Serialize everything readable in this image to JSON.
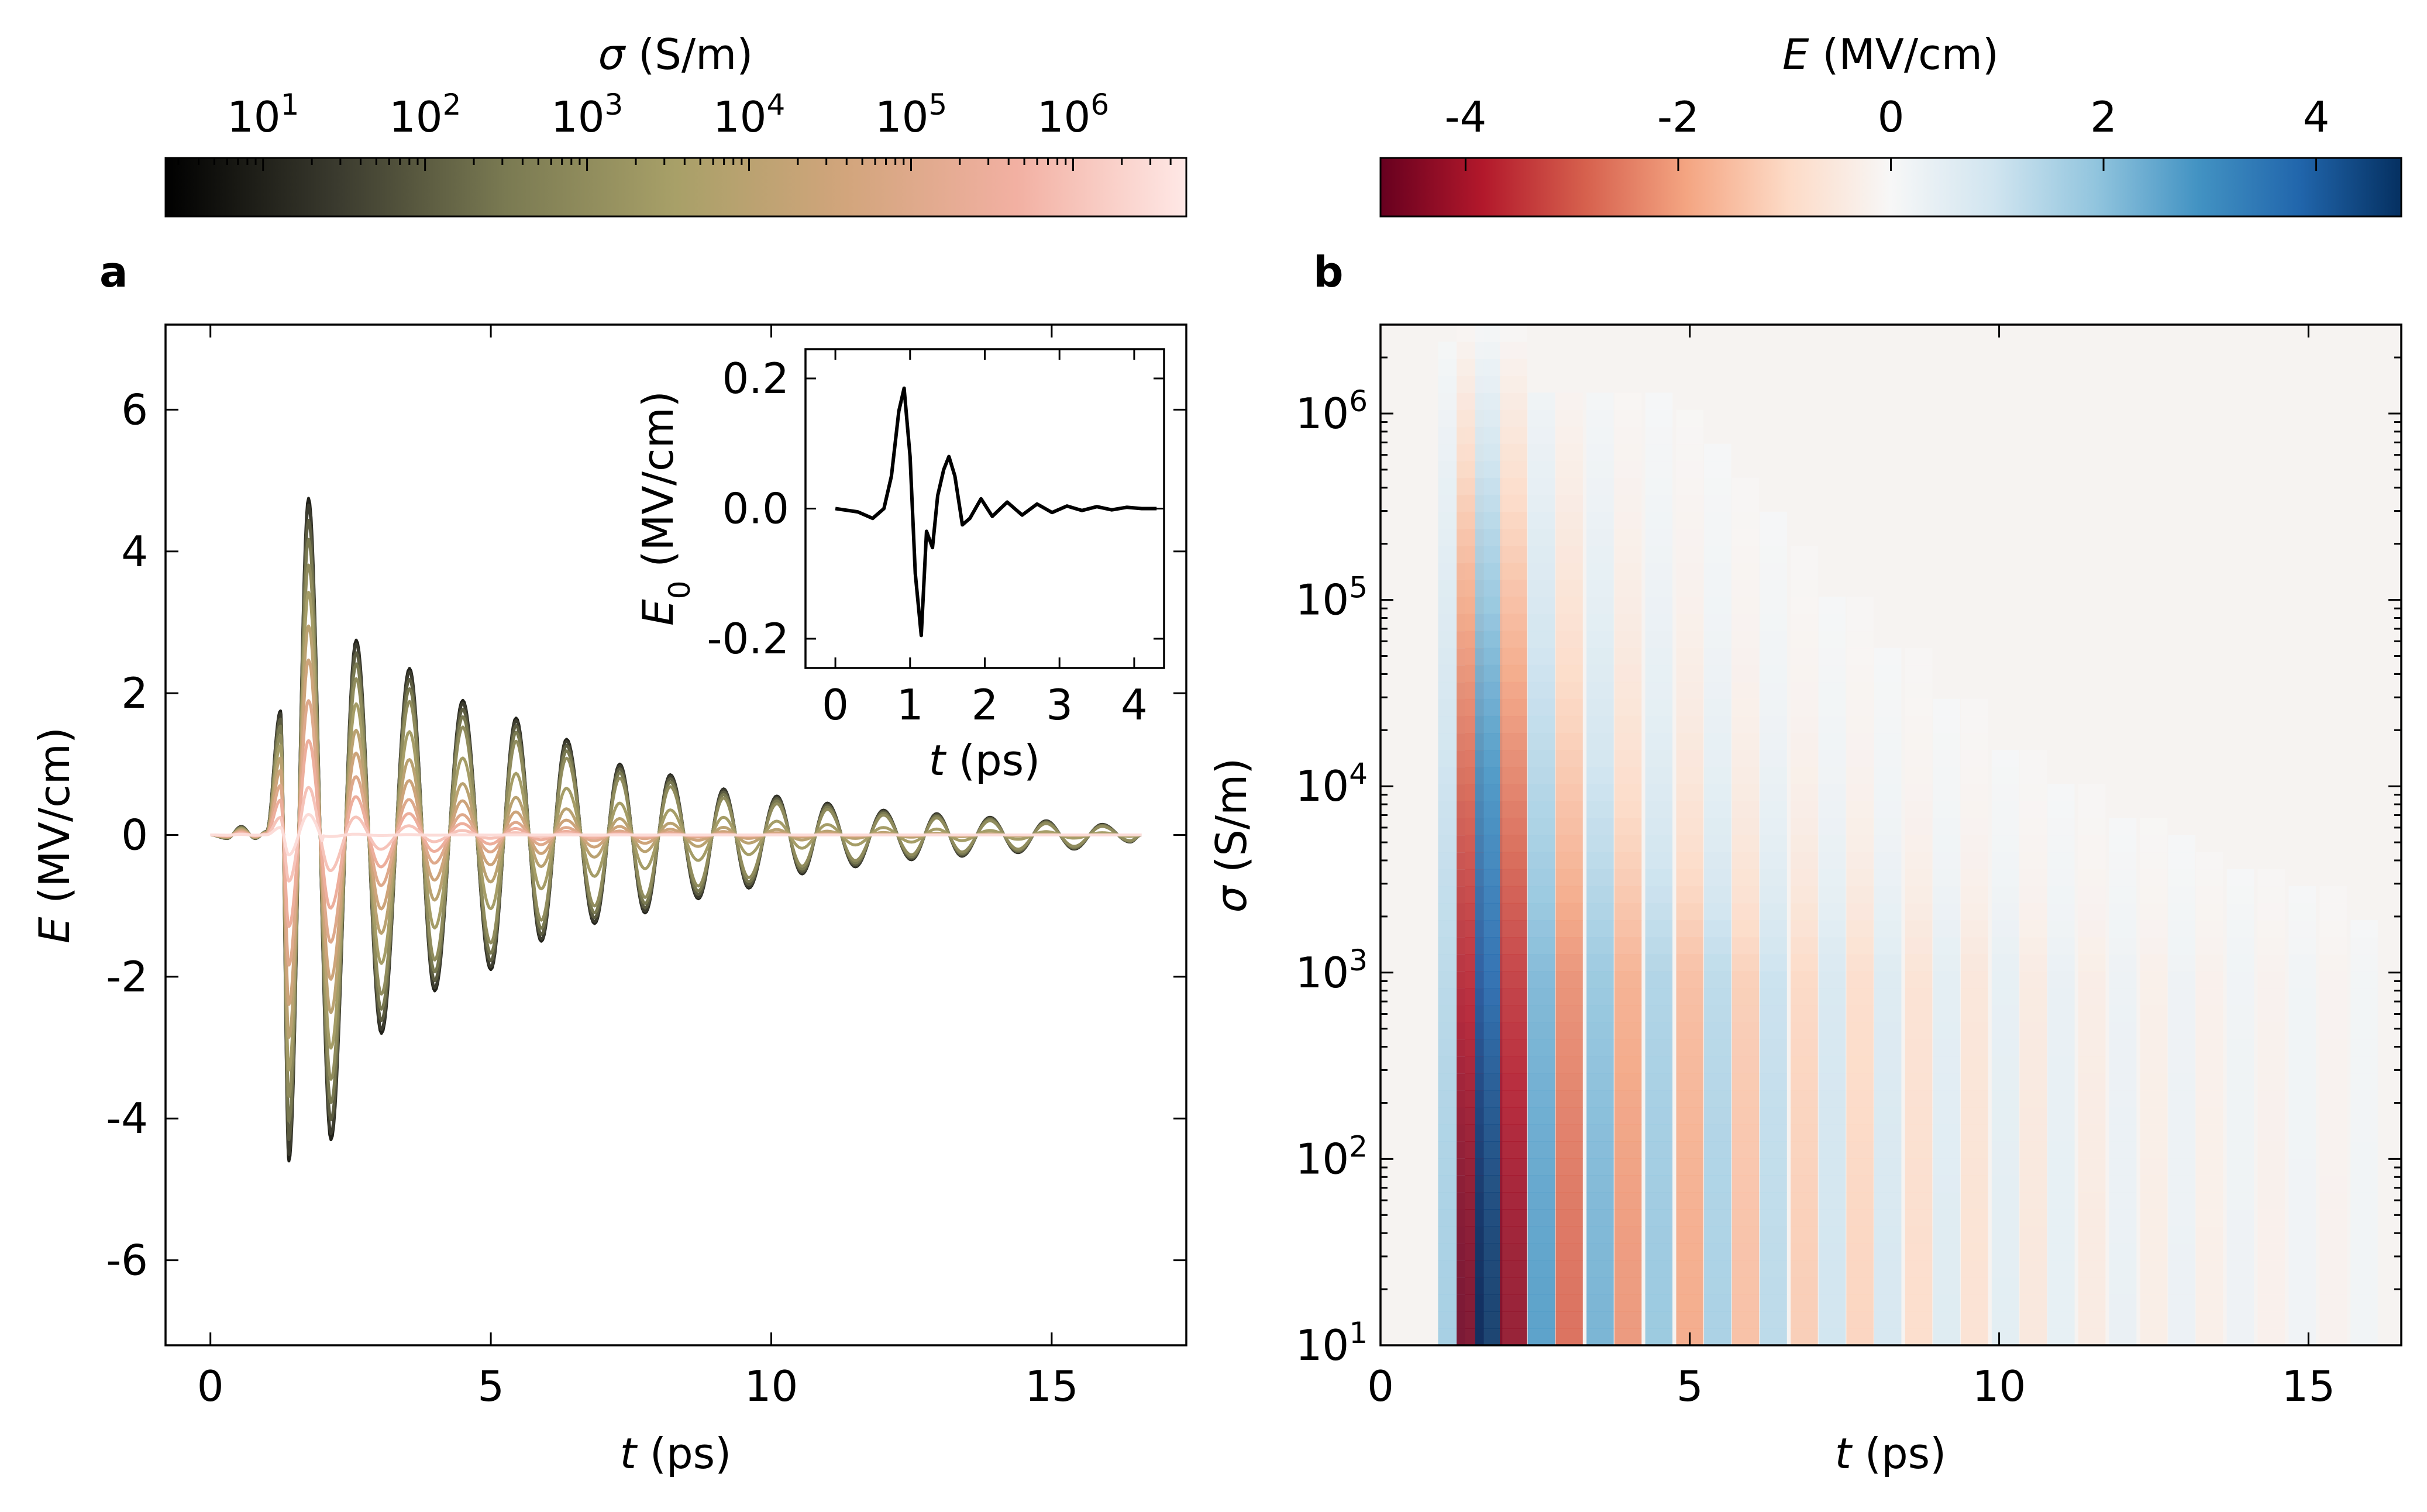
{
  "figure": {
    "panel_a_label": "a",
    "panel_b_label": "b"
  },
  "colorbar_sigma": {
    "label_sym": "σ",
    "label_unit": " (S/m)",
    "scale": "log",
    "range": [
      2.5,
      5000000
    ],
    "tick_exponents": [
      "1",
      "2",
      "3",
      "4",
      "5",
      "6"
    ],
    "tick_base": "10",
    "colors": [
      "#000000",
      "#3a3a2e",
      "#7a7a52",
      "#a8a068",
      "#d2a57c",
      "#f2b0a2",
      "#ffe8e6"
    ]
  },
  "colorbar_E": {
    "label_sym": "E",
    "label_unit": " (MV/cm)",
    "range": [
      -4.8,
      4.8
    ],
    "ticks": [
      "-4",
      "-2",
      "0",
      "2",
      "4"
    ],
    "tick_values": [
      -4,
      -2,
      0,
      2,
      4
    ],
    "colors": [
      "#67001f",
      "#b2182b",
      "#d6604d",
      "#f4a582",
      "#fddbc7",
      "#f7f7f7",
      "#d1e5f0",
      "#92c5de",
      "#4393c3",
      "#2166ac",
      "#053061"
    ]
  },
  "chart_data": [
    {
      "type": "line",
      "panel": "a",
      "xlabel_sym": "t",
      "xlabel_unit": " (ps)",
      "ylabel_sym": "E",
      "ylabel_unit": " (MV/cm)",
      "xlim": [
        -0.8,
        17.4
      ],
      "ylim": [
        -7.2,
        7.2
      ],
      "xticks": [
        "0",
        "5",
        "10",
        "15"
      ],
      "xtick_values": [
        0,
        5,
        10,
        15
      ],
      "yticks": [
        "-6",
        "-4",
        "-2",
        "0",
        "2",
        "4",
        "6"
      ],
      "ytick_values": [
        -6,
        -4,
        -2,
        0,
        2,
        4,
        6
      ],
      "x_range_of_data": [
        0,
        16.6
      ],
      "series_description_sigma_values": [
        10,
        30,
        100,
        300,
        1000,
        3000,
        10000,
        30000,
        100000,
        300000,
        1000000,
        3000000
      ],
      "peak_envelope_low_sigma": {
        "t": [
          1.25,
          1.4,
          1.75,
          2.15,
          2.6,
          3.05,
          3.55,
          4.0,
          4.5,
          5.0,
          5.45,
          5.9,
          6.35,
          6.85,
          7.3,
          7.75,
          8.2,
          8.7,
          9.15,
          9.6,
          10.1,
          10.55,
          11.0,
          11.5,
          12.0,
          12.5,
          12.95,
          13.4,
          13.9,
          14.4,
          14.9,
          15.4,
          15.9,
          16.4
        ],
        "E": [
          1.75,
          -4.6,
          4.75,
          -4.3,
          2.75,
          -2.8,
          2.35,
          -2.2,
          1.9,
          -1.9,
          1.65,
          -1.5,
          1.35,
          -1.25,
          1.0,
          -1.1,
          0.85,
          -0.9,
          0.65,
          -0.75,
          0.55,
          -0.55,
          0.45,
          -0.45,
          0.35,
          -0.35,
          0.3,
          -0.3,
          0.25,
          -0.25,
          0.2,
          -0.2,
          0.15,
          -0.1
        ]
      },
      "inset": {
        "type": "line",
        "xlabel_sym": "t",
        "xlabel_unit": " (ps)",
        "ylabel_sym": "E",
        "ylabel_sub": "0",
        "ylabel_unit": " (MV/cm)",
        "xlim": [
          -0.4,
          4.4
        ],
        "ylim": [
          -0.245,
          0.245
        ],
        "xticks": [
          "0",
          "1",
          "2",
          "3",
          "4"
        ],
        "xtick_values": [
          0,
          1,
          2,
          3,
          4
        ],
        "yticks": [
          "-0.2",
          "0.0",
          "0.2"
        ],
        "ytick_values": [
          -0.2,
          0.0,
          0.2
        ],
        "t": [
          0.0,
          0.3,
          0.5,
          0.65,
          0.75,
          0.85,
          0.92,
          1.0,
          1.07,
          1.15,
          1.22,
          1.3,
          1.37,
          1.45,
          1.52,
          1.6,
          1.7,
          1.8,
          1.95,
          2.1,
          2.3,
          2.5,
          2.7,
          2.9,
          3.1,
          3.3,
          3.5,
          3.7,
          3.9,
          4.1,
          4.3
        ],
        "E0": [
          0.0,
          -0.005,
          -0.015,
          0.0,
          0.05,
          0.15,
          0.185,
          0.08,
          -0.1,
          -0.195,
          -0.035,
          -0.06,
          0.02,
          0.06,
          0.08,
          0.05,
          -0.025,
          -0.015,
          0.015,
          -0.012,
          0.01,
          -0.01,
          0.007,
          -0.006,
          0.004,
          -0.003,
          0.003,
          -0.002,
          0.002,
          0.0,
          0.0
        ]
      }
    },
    {
      "type": "heatmap",
      "panel": "b",
      "xlabel_sym": "t",
      "xlabel_unit": " (ps)",
      "ylabel_sym": "σ",
      "ylabel_unit": " (S/m)",
      "xlim": [
        0,
        16.5
      ],
      "ylim": [
        10,
        3000000
      ],
      "yscale": "log",
      "xticks": [
        "0",
        "5",
        "10",
        "15"
      ],
      "xtick_values": [
        0,
        5,
        10,
        15
      ],
      "ytick_exponents": [
        "1",
        "2",
        "3",
        "4",
        "5",
        "6"
      ],
      "ytick_base": "10",
      "value_range": [
        -4.8,
        4.8
      ],
      "stripe_centers_t": [
        1.15,
        1.45,
        1.75,
        2.15,
        2.6,
        3.05,
        3.55,
        4.0,
        4.5,
        5.0,
        5.45,
        5.9,
        6.35,
        6.85,
        7.3,
        7.75,
        8.2,
        8.7,
        9.15,
        9.6,
        10.1,
        10.55,
        11.0,
        11.5,
        12.0,
        12.5,
        12.95,
        13.4,
        13.9,
        14.4,
        14.9,
        15.4,
        15.9
      ],
      "stripe_peak_E": [
        1.7,
        -4.6,
        4.75,
        -4.3,
        2.75,
        -2.8,
        2.35,
        -2.2,
        1.9,
        -1.9,
        1.65,
        -1.5,
        1.35,
        -1.25,
        1.0,
        -1.1,
        0.85,
        -0.9,
        0.65,
        -0.75,
        0.55,
        -0.55,
        0.45,
        -0.45,
        0.35,
        -0.35,
        0.3,
        -0.3,
        0.25,
        -0.25,
        0.2,
        -0.2,
        0.15
      ]
    }
  ]
}
